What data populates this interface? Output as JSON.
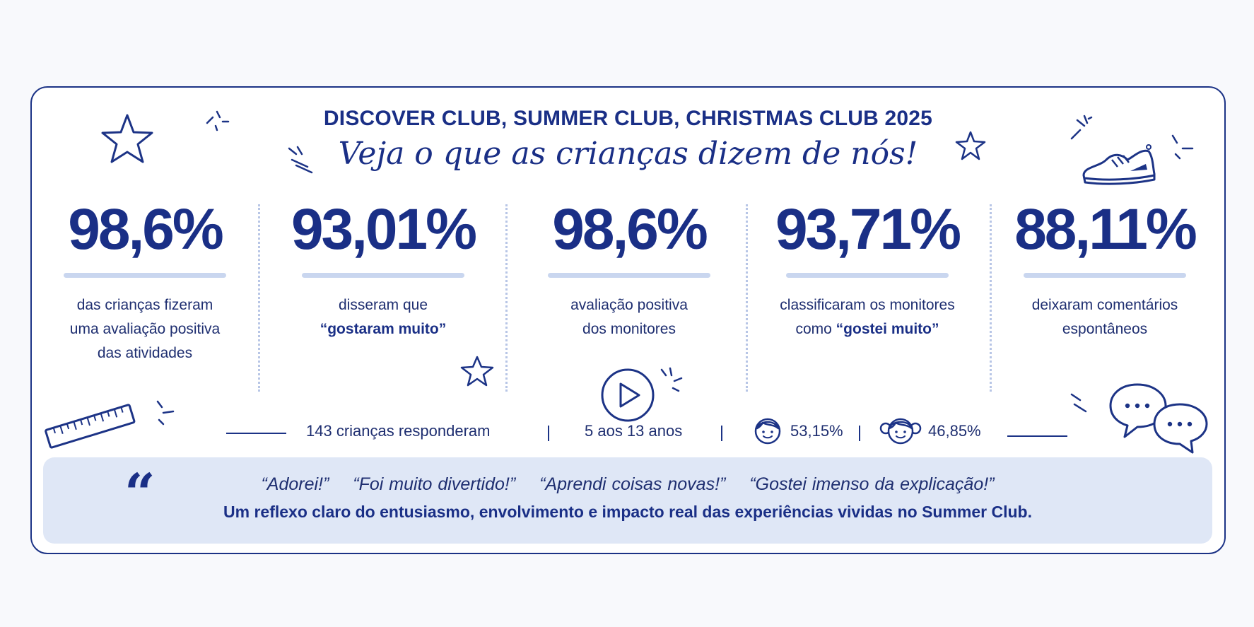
{
  "header": {
    "title": "DISCOVER CLUB, SUMMER CLUB, CHRISTMAS CLUB 2025",
    "subtitle": "Veja o que as crianças dizem de nós!"
  },
  "stats": [
    {
      "value": "98,6%",
      "lines": [
        "das crianças fizeram",
        "uma avaliação positiva",
        "das atividades"
      ]
    },
    {
      "value": "93,01%",
      "line1": "disseram que",
      "emph": "“gostaram muito”"
    },
    {
      "value": "98,6%",
      "lines": [
        "avaliação positiva",
        "dos monitores"
      ]
    },
    {
      "value": "93,71%",
      "line1": "classificaram os monitores",
      "line2_pre": "como ",
      "emph": "“gostei muito”"
    },
    {
      "value": "88,11%",
      "lines": [
        "deixaram comentários",
        "espontâneos"
      ]
    }
  ],
  "summary": {
    "respondents": "143 crianças responderam",
    "ages": "5 aos 13 anos",
    "boys_pct": "53,15%",
    "girls_pct": "46,85%"
  },
  "quotes": {
    "mark": "“",
    "items": [
      "“Adorei!”",
      "“Foi muito divertido!”",
      "“Aprendi coisas novas!”",
      "“Gostei imenso da explicação!”"
    ],
    "summary": "Um reflexo claro do entusiasmo, envolvimento e impacto real das experiências vividas no Summer Club."
  },
  "icons": [
    "star-icon",
    "sparkle-icon",
    "sneaker-icon",
    "ruler-icon",
    "play-icon",
    "boy-face-icon",
    "girl-face-icon",
    "speech-bubbles-icon"
  ],
  "colors": {
    "navy": "#1a2f86",
    "light_blue": "#dfe7f6",
    "underline": "#c9d6ef"
  }
}
